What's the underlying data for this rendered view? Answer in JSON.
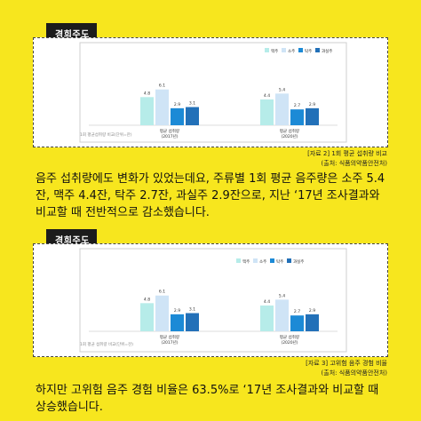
{
  "tags": {
    "first": "경희주도",
    "second": "경희주도"
  },
  "charts": [
    {
      "legend": [
        "맥주",
        "소주",
        "탁주",
        "과실주"
      ],
      "colors": [
        "#b6ece9",
        "#cfe4f6",
        "#1c8ad6",
        "#2270b8"
      ],
      "groups": [
        {
          "label_line1": "평균 섭취량",
          "label_line2": "(2017년)",
          "values": [
            4.8,
            6.1,
            2.9,
            3.1
          ]
        },
        {
          "label_line1": "평균 섭취량",
          "label_line2": "(2020년)",
          "values": [
            4.4,
            5.4,
            2.7,
            2.9
          ]
        }
      ],
      "footnote": "1회 평균섭취량 비교(단위=잔)"
    },
    {
      "legend": [
        "맥주",
        "소주",
        "탁주",
        "과실주"
      ],
      "colors": [
        "#b6ece9",
        "#cfe4f6",
        "#1c8ad6",
        "#2270b8"
      ],
      "groups": [
        {
          "label_line1": "평균 섭취량",
          "label_line2": "(2017년)",
          "values": [
            4.8,
            6.1,
            2.9,
            3.1
          ]
        },
        {
          "label_line1": "평균 섭취량",
          "label_line2": "(2020년)",
          "values": [
            4.4,
            5.4,
            2.7,
            2.9
          ]
        }
      ],
      "footnote": "1회 평균 섭취량 비교(단위=잔)"
    }
  ],
  "chart_data": [
    {
      "type": "bar",
      "categories": [
        "평균 섭취량 (2017년)",
        "평균 섭취량 (2020년)"
      ],
      "series": [
        {
          "name": "맥주",
          "values": [
            4.8,
            4.4
          ]
        },
        {
          "name": "소주",
          "values": [
            6.1,
            5.4
          ]
        },
        {
          "name": "탁주",
          "values": [
            2.9,
            2.7
          ]
        },
        {
          "name": "과실주",
          "values": [
            3.1,
            2.9
          ]
        }
      ],
      "ylim": [
        0,
        7
      ]
    },
    {
      "type": "bar",
      "categories": [
        "평균 섭취량 (2017년)",
        "평균 섭취량 (2020년)"
      ],
      "series": [
        {
          "name": "맥주",
          "values": [
            4.8,
            4.4
          ]
        },
        {
          "name": "소주",
          "values": [
            6.1,
            5.4
          ]
        },
        {
          "name": "탁주",
          "values": [
            2.9,
            2.7
          ]
        },
        {
          "name": "과실주",
          "values": [
            3.1,
            2.9
          ]
        }
      ],
      "ylim": [
        0,
        7
      ]
    }
  ],
  "captions": {
    "first_line1": "[자료 2] 1회 평균 섭취량 비교",
    "first_line2": "(출처: 식품의약품안전처)",
    "second_line1": "[자료 3] 고위험 음주 경험 비율",
    "second_line2": "(출처: 식품의약품안전처)"
  },
  "paragraphs": {
    "first": "음주 섭취량에도 변화가 있었는데요, 주류별 1회 평균 음주량은 소주 5.4잔, 맥주 4.4잔, 탁주 2.7잔, 과실주 2.9잔으로, 지난 ‘17년 조사결과와 비교할 때 전반적으로 감소했습니다.",
    "second": "하지만 고위험 음주 경험 비율은 63.5%로 ‘17년 조사결과와 비교할 때 상승했습니다."
  }
}
